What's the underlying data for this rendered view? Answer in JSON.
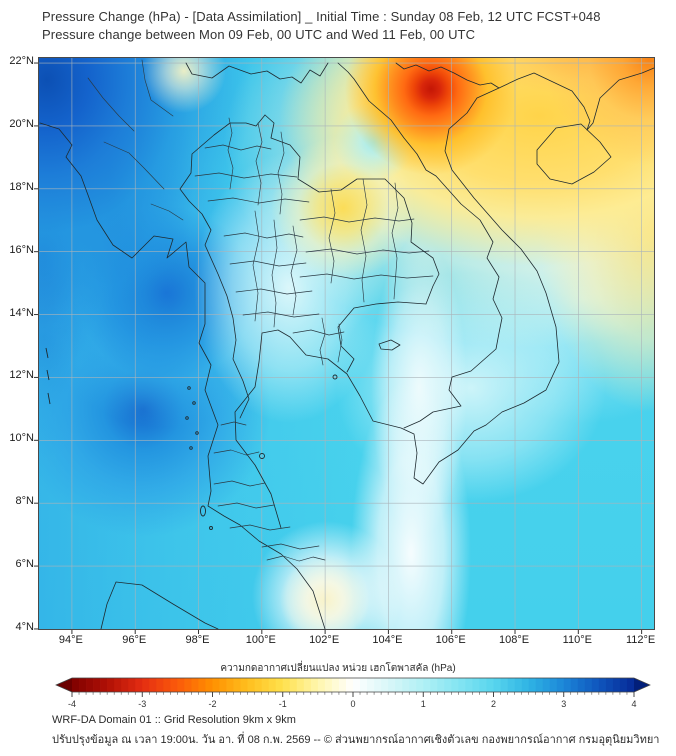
{
  "header": {
    "line1": "Pressure Change (hPa) - [Data Assimilation] _ Initial Time : Sunday 08 Feb, 12 UTC FCST+048",
    "line2": "Pressure change between Mon 09 Feb, 00 UTC and Wed 11 Feb, 00 UTC"
  },
  "axes": {
    "lat_labels": [
      "22°N",
      "20°N",
      "18°N",
      "16°N",
      "14°N",
      "12°N",
      "10°N",
      "8°N",
      "6°N",
      "4°N"
    ],
    "lon_labels": [
      "94°E",
      "96°E",
      "98°E",
      "100°E",
      "102°E",
      "104°E",
      "106°E",
      "108°E",
      "110°E",
      "112°E"
    ]
  },
  "colorbar": {
    "title": "ความกดอากาศเปลี่ยนแปลง หน่วย เฮกโตพาสคัล (hPa)",
    "tick_labels": [
      "-4",
      "-3",
      "-2",
      "-1",
      "0",
      "1",
      "2",
      "3",
      "4"
    ],
    "min": -4,
    "max": 4,
    "unit": "hPa",
    "left_arrow_color": "#6b0000",
    "right_arrow_color": "#021f7a",
    "stops": [
      {
        "v": -4.0,
        "c": "#7f0000"
      },
      {
        "v": -3.5,
        "c": "#b01005"
      },
      {
        "v": -3.0,
        "c": "#e42d12"
      },
      {
        "v": -2.5,
        "c": "#fb5a0a"
      },
      {
        "v": -2.0,
        "c": "#ff9000"
      },
      {
        "v": -1.5,
        "c": "#ffbf1e"
      },
      {
        "v": -1.0,
        "c": "#ffe14d"
      },
      {
        "v": -0.5,
        "c": "#fff6ac"
      },
      {
        "v": 0.0,
        "c": "#ffffff"
      },
      {
        "v": 0.5,
        "c": "#d9f7f8"
      },
      {
        "v": 1.0,
        "c": "#b0f0f5"
      },
      {
        "v": 1.5,
        "c": "#84e5f2"
      },
      {
        "v": 2.0,
        "c": "#58d5ee"
      },
      {
        "v": 2.5,
        "c": "#2fb4e4"
      },
      {
        "v": 3.0,
        "c": "#1c86d8"
      },
      {
        "v": 3.5,
        "c": "#0f55bd"
      },
      {
        "v": 4.0,
        "c": "#062a96"
      }
    ]
  },
  "footer": {
    "line1": "WRF-DA Domain 01 :: Grid Resolution 9km x 9km",
    "line2": "ปรับปรุงข้อมูล ณ เวลา 19:00น. วัน อา. ที่ 08 ก.พ. 2569 -- © ส่วนพยากรณ์อากาศเชิงตัวเลข กองพยากรณ์อากาศ กรมอุตุนิยมวิทยา"
  },
  "chart_data": {
    "type": "heatmap",
    "subtype": "filled_contour_weather_map",
    "region": "Thailand / Indochina",
    "lon_range": [
      93.0,
      112.4
    ],
    "lat_range": [
      4.0,
      22.2
    ],
    "grid": "on",
    "colorbar_range": [
      -4,
      4
    ],
    "colorbar_unit": "hPa",
    "color_convention": "negative (pressure fall) = red/orange/yellow, zero = white, positive (pressure rise) = cyan/blue",
    "features": [
      {
        "name": "strong-pressure-fall-core",
        "lon": 106.0,
        "lat": 21.2,
        "value_hpa": -3.3
      },
      {
        "name": "pressure-fall-area-top-right",
        "region": "northern Vietnam / Laos / south China",
        "value_hpa": -1.5
      },
      {
        "name": "pressure-fall-corner",
        "lon": 112.3,
        "lat": 22.0,
        "value_hpa": -2.2
      },
      {
        "name": "slight-fall-spot-northeast-thailand",
        "lon": 102.6,
        "lat": 17.4,
        "value_hpa": -1.1
      },
      {
        "name": "slight-fall-spot-south",
        "lon": 102.0,
        "lat": 4.7,
        "value_hpa": -0.3
      },
      {
        "name": "pressure-rise-maximum-top-left",
        "lon": 93.3,
        "lat": 21.5,
        "value_hpa": 3.2
      },
      {
        "name": "pressure-rise-blob-andaman",
        "lon": 97.0,
        "lat": 14.7,
        "value_hpa": 2.8
      },
      {
        "name": "pressure-rise-blob-andaman-south",
        "lon": 96.3,
        "lat": 11.0,
        "value_hpa": 2.9
      },
      {
        "name": "near-zero-white-band",
        "lon": 104.5,
        "lat": 8.0,
        "value_hpa": 0.0
      },
      {
        "name": "background-cyan",
        "region": "Andaman Sea / Gulf of Thailand / South China Sea",
        "value_hpa": 1.6
      }
    ]
  }
}
